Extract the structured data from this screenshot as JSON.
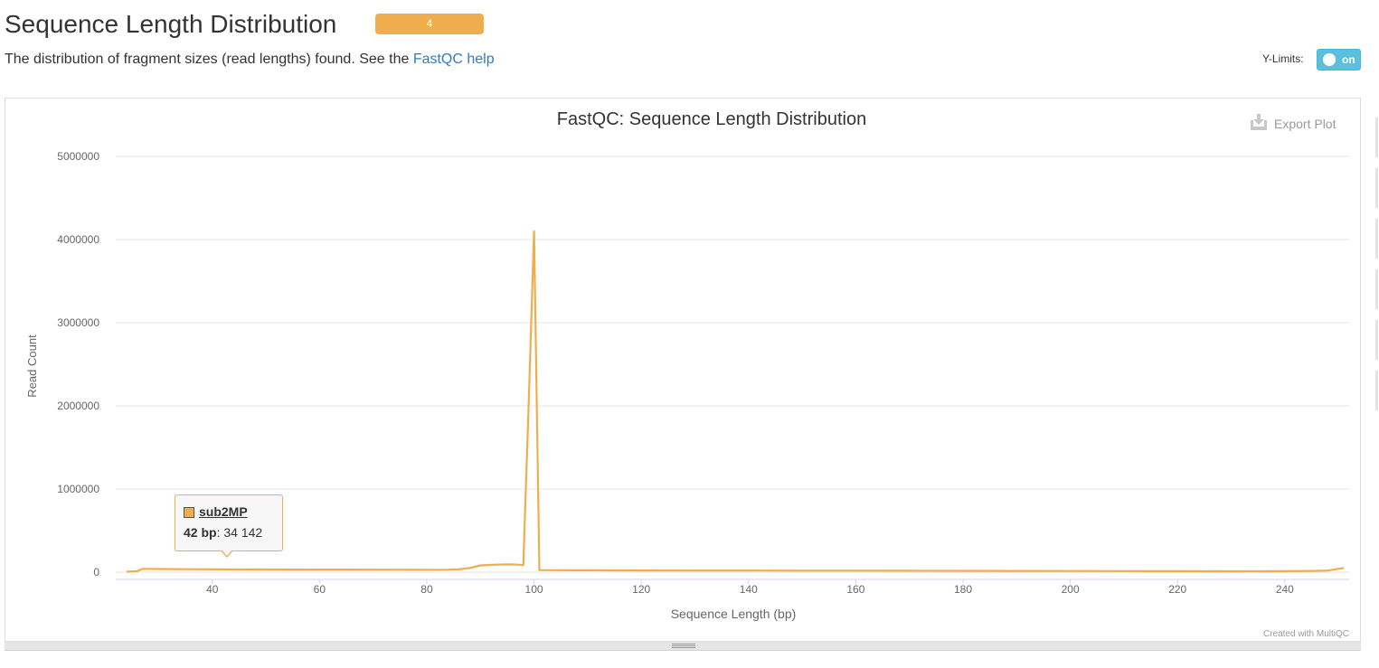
{
  "header": {
    "title": "Sequence Length Distribution",
    "badge": "4",
    "description_prefix": "The distribution of fragment sizes (read lengths) found. See the ",
    "help_link": "FastQC help"
  },
  "controls": {
    "ylimits_label": "Y-Limits:",
    "ylimits_state": "on",
    "export_label": "Export Plot"
  },
  "credit": "Created with MultiQC",
  "tooltip": {
    "series": "sub2MP",
    "x_label": "42 bp",
    "value": ": 34 142"
  },
  "colors": {
    "series": "#f0ad4e",
    "link": "#337ab7",
    "toggle": "#5bc0de"
  },
  "chart_data": {
    "type": "line",
    "title": "FastQC: Sequence Length Distribution",
    "xlabel": "Sequence Length (bp)",
    "ylabel": "Read Count",
    "xlim": [
      22,
      252
    ],
    "ylim": [
      0,
      5000000
    ],
    "x_ticks": [
      "40",
      "60",
      "80",
      "100",
      "120",
      "140",
      "160",
      "180",
      "200",
      "220",
      "240"
    ],
    "y_ticks": [
      "0",
      "1000000",
      "2000000",
      "3000000",
      "4000000",
      "5000000"
    ],
    "grid": true,
    "series": [
      {
        "name": "sub2MP",
        "x": [
          24,
          26,
          27,
          30,
          35,
          42,
          50,
          60,
          70,
          80,
          84,
          86,
          88,
          89,
          90,
          92,
          94,
          96,
          97,
          98,
          99,
          100,
          101,
          110,
          120,
          130,
          140,
          150,
          160,
          170,
          180,
          190,
          200,
          210,
          220,
          230,
          240,
          245,
          248,
          249,
          250,
          251
        ],
        "y": [
          5000,
          12000,
          40000,
          38000,
          36000,
          34142,
          33000,
          32000,
          30000,
          28000,
          30000,
          35000,
          50000,
          65000,
          82000,
          88000,
          92000,
          93000,
          90000,
          85000,
          2000000,
          4100000,
          25000,
          23000,
          21000,
          20000,
          20000,
          19000,
          18000,
          17000,
          16000,
          15000,
          14000,
          13000,
          12000,
          11000,
          12000,
          15000,
          20000,
          30000,
          40000,
          50000
        ]
      }
    ]
  }
}
